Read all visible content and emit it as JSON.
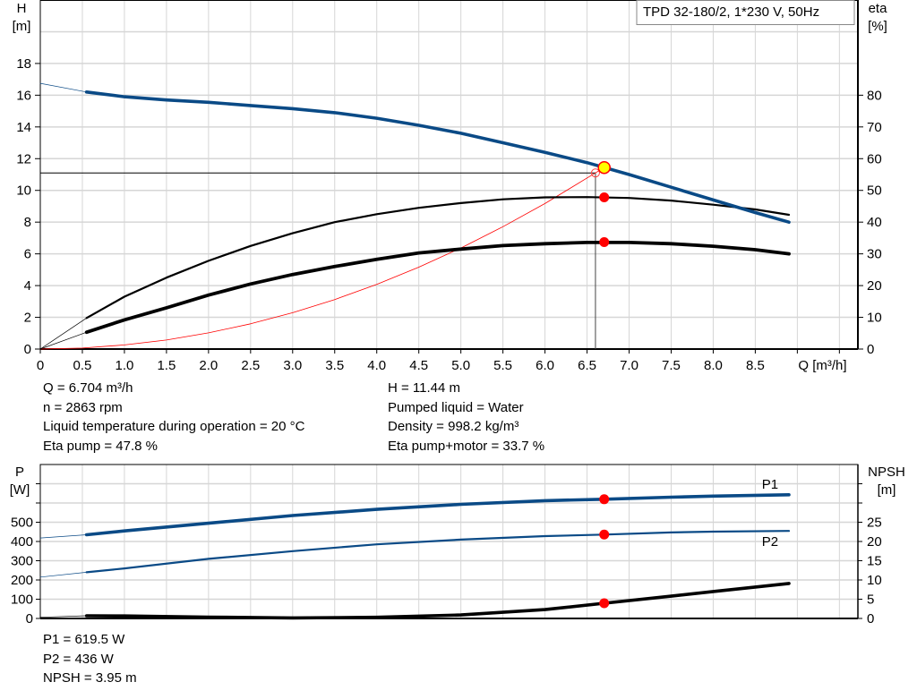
{
  "legend_box": "TPD 32-180/2, 1*230 V, 50Hz",
  "info_left": [
    "Q = 6.704 m³/h",
    "n = 2863 rpm",
    "Liquid temperature during operation = 20 °C",
    "Eta pump = 47.8 %"
  ],
  "info_right": [
    "H = 11.44 m",
    "Pumped liquid = Water",
    "Density = 998.2 kg/m³",
    "Eta pump+motor = 33.7 %"
  ],
  "info_bottom": [
    "P1 = 619.5 W",
    "P2 = 436 W",
    "NPSH = 3.95 m"
  ],
  "chart_data": [
    {
      "type": "line",
      "ylabel": "H\n[m]",
      "y2label": "eta\n[%]",
      "xlabel": "Q [m³/h]",
      "xlim": [
        0,
        9.72
      ],
      "ylim": [
        0,
        22
      ],
      "y2lim": [
        0,
        110
      ],
      "grid": true,
      "xticks": [
        "0",
        "0.5",
        "1.0",
        "1.5",
        "2.0",
        "2.5",
        "3.0",
        "3.5",
        "4.0",
        "4.5",
        "5.0",
        "5.5",
        "6.0",
        "6.5",
        "7.0",
        "7.5",
        "8.0",
        "8.5"
      ],
      "yticks": [
        "0",
        "2",
        "4",
        "6",
        "8",
        "10",
        "12",
        "14",
        "16",
        "18"
      ],
      "y2ticks": [
        "0",
        "10",
        "20",
        "30",
        "40",
        "50",
        "60",
        "70",
        "80"
      ],
      "series": [
        {
          "key": "H",
          "axis": "left",
          "color": "#0a4a86",
          "x": [
            0,
            0.55,
            1.0,
            1.5,
            2.0,
            2.5,
            3.0,
            3.5,
            4.0,
            4.5,
            5.0,
            5.5,
            6.0,
            6.5,
            7.0,
            7.5,
            8.0,
            8.5,
            8.9
          ],
          "y": [
            16.75,
            16.2,
            15.9,
            15.7,
            15.55,
            15.35,
            15.15,
            14.9,
            14.55,
            14.1,
            13.6,
            13.0,
            12.4,
            11.75,
            11.0,
            10.2,
            9.4,
            8.6,
            8.0
          ]
        },
        {
          "key": "eta_pump",
          "axis": "right",
          "color": "#000000",
          "x": [
            0,
            0.55,
            1.0,
            1.5,
            2.0,
            2.5,
            3.0,
            3.5,
            4.0,
            4.5,
            5.0,
            5.5,
            6.0,
            6.5,
            7.0,
            7.5,
            8.0,
            8.5,
            8.9
          ],
          "y": [
            0,
            9.8,
            16.5,
            22.5,
            27.8,
            32.5,
            36.5,
            40,
            42.5,
            44.5,
            46,
            47.2,
            47.8,
            47.9,
            47.6,
            46.8,
            45.5,
            44,
            42.3
          ]
        },
        {
          "key": "eta_pump_motor",
          "axis": "right",
          "color": "#000000",
          "x": [
            0,
            0.55,
            1.0,
            1.5,
            2.0,
            2.5,
            3.0,
            3.5,
            4.0,
            4.5,
            5.0,
            5.5,
            6.0,
            6.5,
            7.0,
            7.5,
            8.0,
            8.5,
            8.9
          ],
          "y": [
            0,
            5.3,
            9.2,
            13,
            17,
            20.5,
            23.5,
            26,
            28.3,
            30.3,
            31.5,
            32.6,
            33.2,
            33.6,
            33.6,
            33.2,
            32.4,
            31.3,
            30
          ]
        },
        {
          "key": "system_curve",
          "axis": "left",
          "color": "#ff0000",
          "x": [
            0,
            0.5,
            1.0,
            1.5,
            2.0,
            2.5,
            3.0,
            3.5,
            4.0,
            4.5,
            5.0,
            5.5,
            6.0,
            6.6
          ],
          "y": [
            0,
            0.06,
            0.26,
            0.57,
            1.02,
            1.59,
            2.29,
            3.12,
            4.08,
            5.16,
            6.37,
            7.71,
            9.17,
            11.1
          ]
        }
      ],
      "required_point": {
        "q": 6.6,
        "h": 11.1
      },
      "duty_point": {
        "q": 6.704,
        "h": 11.44,
        "eta_pump": 47.8,
        "eta_pump_motor": 33.7
      }
    },
    {
      "type": "line",
      "ylabel": "P\n[W]",
      "y2label": "NPSH\n[m]",
      "xlim": [
        0,
        9.72
      ],
      "ylim": [
        0,
        800
      ],
      "y2lim": [
        0,
        40
      ],
      "grid": true,
      "yticks": [
        "0",
        "100",
        "200",
        "300",
        "400",
        "500"
      ],
      "y2ticks": [
        "0",
        "5",
        "10",
        "15",
        "20",
        "25"
      ],
      "series": [
        {
          "key": "P1",
          "name": "P1",
          "axis": "left",
          "color": "#0a4a86",
          "x": [
            0,
            0.55,
            1.0,
            2.0,
            3.0,
            4.0,
            5.0,
            6.0,
            6.704,
            7.5,
            8.0,
            8.9
          ],
          "y": [
            418,
            435,
            455,
            495,
            535,
            567,
            593,
            612,
            619.5,
            630,
            636,
            643
          ]
        },
        {
          "key": "P2",
          "name": "P2",
          "axis": "left",
          "color": "#0a4a86",
          "x": [
            0,
            0.55,
            1.0,
            2.0,
            3.0,
            4.0,
            5.0,
            6.0,
            6.704,
            7.5,
            8.0,
            8.9
          ],
          "y": [
            215,
            240,
            260,
            310,
            350,
            385,
            410,
            428,
            436,
            447,
            451,
            455
          ]
        },
        {
          "key": "NPSH",
          "axis": "right",
          "color": "#000000",
          "x": [
            0,
            0.55,
            1.0,
            2.0,
            3.0,
            4.0,
            5.0,
            6.0,
            6.704,
            7.5,
            8.0,
            8.9
          ],
          "y": [
            0.3,
            0.7,
            0.65,
            0.35,
            0.15,
            0.3,
            0.9,
            2.3,
            3.95,
            5.8,
            7.0,
            9.1
          ]
        }
      ],
      "duty_point": {
        "q": 6.704,
        "p1": 619.5,
        "p2": 436,
        "npsh": 3.95
      }
    }
  ]
}
